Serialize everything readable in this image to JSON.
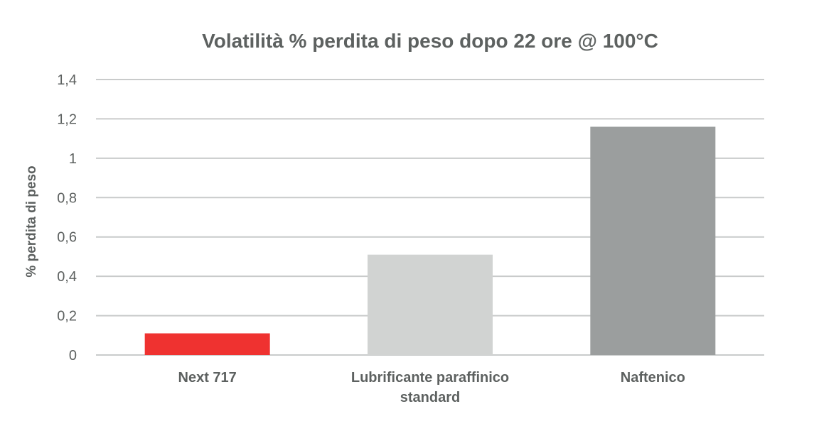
{
  "chart_data": {
    "type": "bar",
    "title": "Volatilità % perdita di peso dopo 22 ore @ 100°C",
    "ylabel": "% perdita di peso",
    "xlabel": "",
    "categories": [
      [
        "Next 717"
      ],
      [
        "Lubrificante paraffinico",
        "standard"
      ],
      [
        "Naftenico"
      ]
    ],
    "values": [
      0.11,
      0.51,
      1.16
    ],
    "bar_colors": [
      "#ef3230",
      "#d1d3d2",
      "#9b9e9e"
    ],
    "ylim": [
      0,
      1.4
    ],
    "yticks": [
      0,
      0.2,
      0.4,
      0.6,
      0.8,
      1,
      1.2,
      1.4
    ],
    "ytick_labels": [
      "0",
      "0,2",
      "0,4",
      "0,6",
      "0,8",
      "1",
      "1,2",
      "1,4"
    ],
    "grid": true,
    "legend": "none"
  }
}
